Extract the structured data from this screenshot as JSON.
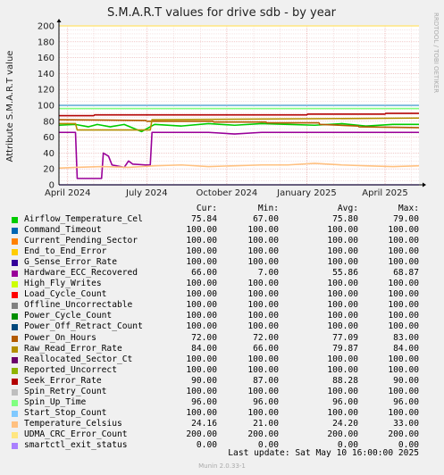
{
  "chart_data": {
    "type": "line",
    "title": "S.M.A.R.T values for drive sdb - by year",
    "ylabel": "Attribute S.M.A.R.T value",
    "xlabel": "",
    "ylim": [
      0,
      200
    ],
    "yticks": [
      0,
      20,
      40,
      60,
      80,
      100,
      120,
      140,
      160,
      180,
      200
    ],
    "xlim": [
      "2024-03-22",
      "2025-05-10"
    ],
    "xticks": [
      {
        "date": "2024-04-01",
        "label": "April 2024"
      },
      {
        "date": "2024-07-01",
        "label": "July 2024"
      },
      {
        "date": "2024-10-01",
        "label": "October 2024"
      },
      {
        "date": "2025-01-01",
        "label": "January 2025"
      },
      {
        "date": "2025-04-01",
        "label": "April 2025"
      }
    ],
    "grid": true,
    "legend_position": "bottom",
    "series": [
      {
        "name": "Airflow_Temperature_Cel",
        "color": "#00cc00",
        "cur": "75.84",
        "min": "67.00",
        "avg": "75.80",
        "max": "79.00",
        "points": [
          [
            "2024-03-22",
            75
          ],
          [
            "2024-04-10",
            76
          ],
          [
            "2024-04-25",
            73
          ],
          [
            "2024-05-05",
            76
          ],
          [
            "2024-05-20",
            73
          ],
          [
            "2024-06-05",
            76
          ],
          [
            "2024-06-25",
            67
          ],
          [
            "2024-07-10",
            76
          ],
          [
            "2024-08-10",
            74
          ],
          [
            "2024-09-10",
            77
          ],
          [
            "2024-10-10",
            75
          ],
          [
            "2024-11-10",
            77
          ],
          [
            "2024-12-10",
            76
          ],
          [
            "2025-01-10",
            75
          ],
          [
            "2025-02-10",
            77
          ],
          [
            "2025-03-10",
            74
          ],
          [
            "2025-04-10",
            76
          ],
          [
            "2025-05-10",
            76
          ]
        ]
      },
      {
        "name": "Command_Timeout",
        "color": "#0066b3",
        "cur": "100.00",
        "min": "100.00",
        "avg": "100.00",
        "max": "100.00",
        "points": [
          [
            "2024-03-22",
            100
          ],
          [
            "2025-05-10",
            100
          ]
        ]
      },
      {
        "name": "Current_Pending_Sector",
        "color": "#ff8000",
        "cur": "100.00",
        "min": "100.00",
        "avg": "100.00",
        "max": "100.00",
        "points": [
          [
            "2024-03-22",
            100
          ],
          [
            "2025-05-10",
            100
          ]
        ]
      },
      {
        "name": "End_to_End_Error",
        "color": "#ffcc00",
        "cur": "100.00",
        "min": "100.00",
        "avg": "100.00",
        "max": "100.00",
        "points": [
          [
            "2024-03-22",
            100
          ],
          [
            "2025-05-10",
            100
          ]
        ]
      },
      {
        "name": "G_Sense_Error_Rate",
        "color": "#330099",
        "cur": "100.00",
        "min": "100.00",
        "avg": "100.00",
        "max": "100.00",
        "points": [
          [
            "2024-03-22",
            100
          ],
          [
            "2025-05-10",
            100
          ]
        ]
      },
      {
        "name": "Hardware_ECC_Recovered",
        "color": "#990099",
        "cur": "66.00",
        "min": "7.00",
        "avg": "55.86",
        "max": "68.87",
        "points": [
          [
            "2024-03-22",
            66
          ],
          [
            "2024-04-10",
            66
          ],
          [
            "2024-04-12",
            8
          ],
          [
            "2024-05-10",
            8
          ],
          [
            "2024-05-12",
            40
          ],
          [
            "2024-05-18",
            36
          ],
          [
            "2024-05-22",
            25
          ],
          [
            "2024-06-05",
            22
          ],
          [
            "2024-06-10",
            30
          ],
          [
            "2024-06-15",
            26
          ],
          [
            "2024-06-30",
            25
          ],
          [
            "2024-07-05",
            25
          ],
          [
            "2024-07-07",
            66
          ],
          [
            "2024-09-10",
            66
          ],
          [
            "2024-10-10",
            64
          ],
          [
            "2024-11-10",
            66
          ],
          [
            "2025-05-10",
            66
          ]
        ]
      },
      {
        "name": "High_Fly_Writes",
        "color": "#ccff00",
        "cur": "100.00",
        "min": "100.00",
        "avg": "100.00",
        "max": "100.00",
        "points": [
          [
            "2024-03-22",
            100
          ],
          [
            "2025-05-10",
            100
          ]
        ]
      },
      {
        "name": "Load_Cycle_Count",
        "color": "#ff0000",
        "cur": "100.00",
        "min": "100.00",
        "avg": "100.00",
        "max": "100.00",
        "points": [
          [
            "2024-03-22",
            100
          ],
          [
            "2025-05-10",
            100
          ]
        ]
      },
      {
        "name": "Offline_Uncorrectable",
        "color": "#808080",
        "cur": "100.00",
        "min": "100.00",
        "avg": "100.00",
        "max": "100.00",
        "points": [
          [
            "2024-03-22",
            100
          ],
          [
            "2025-05-10",
            100
          ]
        ]
      },
      {
        "name": "Power_Cycle_Count",
        "color": "#008f00",
        "cur": "100.00",
        "min": "100.00",
        "avg": "100.00",
        "max": "100.00",
        "points": [
          [
            "2024-03-22",
            100
          ],
          [
            "2025-05-10",
            100
          ]
        ]
      },
      {
        "name": "Power_Off_Retract_Count",
        "color": "#00487d",
        "cur": "100.00",
        "min": "100.00",
        "avg": "100.00",
        "max": "100.00",
        "points": [
          [
            "2024-03-22",
            100
          ],
          [
            "2025-05-10",
            100
          ]
        ]
      },
      {
        "name": "Power_On_Hours",
        "color": "#b35a00",
        "cur": "72.00",
        "min": "72.00",
        "avg": "77.09",
        "max": "83.00",
        "points": [
          [
            "2024-03-22",
            82
          ],
          [
            "2024-06-30",
            81
          ],
          [
            "2024-07-01",
            80
          ],
          [
            "2024-09-15",
            80
          ],
          [
            "2024-09-16",
            79
          ],
          [
            "2024-11-15",
            79
          ],
          [
            "2024-11-16",
            78
          ],
          [
            "2025-01-15",
            78
          ],
          [
            "2025-01-16",
            76
          ],
          [
            "2025-03-01",
            74
          ],
          [
            "2025-03-02",
            73
          ],
          [
            "2025-05-10",
            72
          ]
        ]
      },
      {
        "name": "Raw_Read_Error_Rate",
        "color": "#b38f00",
        "cur": "84.00",
        "min": "66.00",
        "avg": "79.87",
        "max": "84.00",
        "points": [
          [
            "2024-03-22",
            77
          ],
          [
            "2024-04-10",
            77
          ],
          [
            "2024-04-12",
            69
          ],
          [
            "2024-07-05",
            69
          ],
          [
            "2024-07-07",
            82
          ],
          [
            "2025-05-10",
            84
          ]
        ]
      },
      {
        "name": "Reallocated_Sector_Ct",
        "color": "#6b006b",
        "cur": "100.00",
        "min": "100.00",
        "avg": "100.00",
        "max": "100.00",
        "points": [
          [
            "2024-03-22",
            100
          ],
          [
            "2025-05-10",
            100
          ]
        ]
      },
      {
        "name": "Reported_Uncorrect",
        "color": "#8fb300",
        "cur": "100.00",
        "min": "100.00",
        "avg": "100.00",
        "max": "100.00",
        "points": [
          [
            "2024-03-22",
            100
          ],
          [
            "2025-05-10",
            100
          ]
        ]
      },
      {
        "name": "Seek_Error_Rate",
        "color": "#b30000",
        "cur": "90.00",
        "min": "87.00",
        "avg": "88.28",
        "max": "90.00",
        "points": [
          [
            "2024-03-22",
            87
          ],
          [
            "2024-05-01",
            87
          ],
          [
            "2024-05-02",
            88
          ],
          [
            "2025-01-01",
            88
          ],
          [
            "2025-01-02",
            89
          ],
          [
            "2025-04-01",
            89
          ],
          [
            "2025-04-02",
            90
          ],
          [
            "2025-05-10",
            90
          ]
        ]
      },
      {
        "name": "Spin_Retry_Count",
        "color": "#bebebe",
        "cur": "100.00",
        "min": "100.00",
        "avg": "100.00",
        "max": "100.00",
        "points": [
          [
            "2024-03-22",
            100
          ],
          [
            "2025-05-10",
            100
          ]
        ]
      },
      {
        "name": "Spin_Up_Time",
        "color": "#80ff80",
        "cur": "96.00",
        "min": "96.00",
        "avg": "96.00",
        "max": "96.00",
        "points": [
          [
            "2024-03-22",
            96
          ],
          [
            "2025-05-10",
            96
          ]
        ]
      },
      {
        "name": "Start_Stop_Count",
        "color": "#80c9ff",
        "cur": "100.00",
        "min": "100.00",
        "avg": "100.00",
        "max": "100.00",
        "points": [
          [
            "2024-03-22",
            100
          ],
          [
            "2025-05-10",
            100
          ]
        ]
      },
      {
        "name": "Temperature_Celsius",
        "color": "#ffc080",
        "cur": "24.16",
        "min": "21.00",
        "avg": "24.20",
        "max": "33.00",
        "points": [
          [
            "2024-03-22",
            21
          ],
          [
            "2024-04-10",
            22
          ],
          [
            "2024-05-10",
            23
          ],
          [
            "2024-06-10",
            22
          ],
          [
            "2024-07-10",
            24
          ],
          [
            "2024-08-10",
            25
          ],
          [
            "2024-09-10",
            23
          ],
          [
            "2024-10-10",
            24
          ],
          [
            "2024-11-10",
            25
          ],
          [
            "2024-12-10",
            25
          ],
          [
            "2025-01-10",
            27
          ],
          [
            "2025-02-10",
            25
          ],
          [
            "2025-03-10",
            24
          ],
          [
            "2025-04-10",
            23
          ],
          [
            "2025-05-10",
            24
          ]
        ]
      },
      {
        "name": "UDMA_CRC_Error_Count",
        "color": "#ffe680",
        "cur": "200.00",
        "min": "200.00",
        "avg": "200.00",
        "max": "200.00",
        "points": [
          [
            "2024-03-22",
            200
          ],
          [
            "2025-05-10",
            200
          ]
        ]
      },
      {
        "name": "smartctl_exit_status",
        "color": "#aa80ff",
        "cur": "0.00",
        "min": "0.00",
        "avg": "0.00",
        "max": "0.00",
        "points": [
          [
            "2024-03-22",
            0
          ],
          [
            "2025-05-10",
            0
          ]
        ]
      }
    ]
  },
  "legend": {
    "cur": "Cur:",
    "min": "Min:",
    "avg": "Avg:",
    "max": "Max:"
  },
  "footer": {
    "last_update": "Last update:  Sat May 10 16:00:00 2025",
    "munin": "Munin 2.0.33-1"
  },
  "brand": "RRDTOOL / TOBI OETIKER"
}
